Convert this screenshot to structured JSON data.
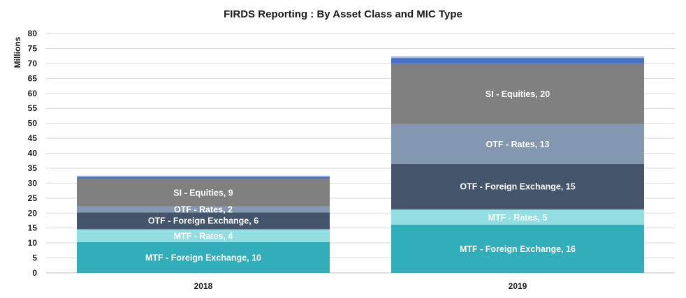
{
  "chart_data": {
    "type": "bar",
    "stacked": true,
    "title": "FIRDS Reporting : By Asset Class and MIC Type",
    "ylabel": "Millions",
    "xlabel": "",
    "ylim": [
      0,
      80
    ],
    "yticks": [
      0,
      5,
      10,
      15,
      20,
      25,
      30,
      35,
      40,
      45,
      50,
      55,
      60,
      65,
      70,
      75,
      80
    ],
    "grid": true,
    "legend": "none",
    "categories": [
      "2018",
      "2019"
    ],
    "series": [
      {
        "label": "MTF - Foreign Exchange",
        "color": "#31aeb9",
        "values": [
          10.3,
          16.1
        ]
      },
      {
        "label": "MTF - Rates",
        "color": "#93dee3",
        "values": [
          4.2,
          5.0
        ]
      },
      {
        "label": "",
        "color": "#5c7a8c",
        "values": [
          0.2,
          0.3
        ]
      },
      {
        "label": "OTF - Foreign Exchange",
        "color": "#44546a",
        "values": [
          5.5,
          15.0
        ]
      },
      {
        "label": "OTF - Rates",
        "color": "#8497b0",
        "values": [
          2.0,
          13.3
        ]
      },
      {
        "label": "SI - Equities",
        "color": "#808080",
        "values": [
          9.2,
          20.3
        ]
      },
      {
        "label": "",
        "color": "#4472c4",
        "values": [
          0.7,
          1.8
        ]
      },
      {
        "label": "",
        "color": "#a9b9d4",
        "values": [
          0.4,
          0.6
        ]
      }
    ],
    "data_labels": [
      {
        "category": "2018",
        "series": "MTF - Foreign Exchange",
        "text": "MTF - Foreign Exchange, 10"
      },
      {
        "category": "2018",
        "series": "MTF - Rates",
        "text": "MTF - Rates, 4"
      },
      {
        "category": "2018",
        "series": "OTF - Foreign Exchange",
        "text": "OTF - Foreign Exchange, 6"
      },
      {
        "category": "2018",
        "series": "OTF - Rates",
        "text": "OTF - Rates, 2"
      },
      {
        "category": "2018",
        "series": "SI - Equities",
        "text": "SI - Equities, 9"
      },
      {
        "category": "2019",
        "series": "MTF - Foreign Exchange",
        "text": "MTF - Foreign Exchange, 16"
      },
      {
        "category": "2019",
        "series": "MTF - Rates",
        "text": "MTF - Rates, 5"
      },
      {
        "category": "2019",
        "series": "OTF - Foreign Exchange",
        "text": "OTF - Foreign Exchange, 15"
      },
      {
        "category": "2019",
        "series": "OTF - Rates",
        "text": "OTF - Rates, 13"
      },
      {
        "category": "2019",
        "series": "SI - Equities",
        "text": "SI - Equities, 20"
      }
    ]
  }
}
